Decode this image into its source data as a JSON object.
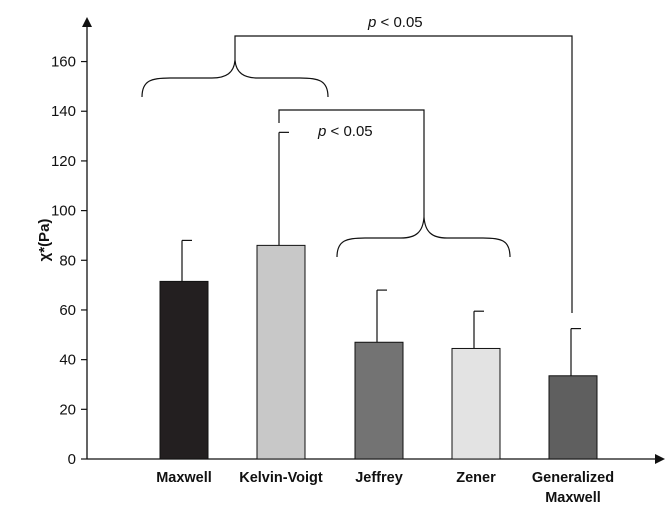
{
  "chart_data": {
    "type": "bar",
    "title": "",
    "xlabel": "",
    "ylabel": "χ*(Pa)",
    "ylim": [
      0,
      170
    ],
    "yticks": [
      0,
      20,
      40,
      60,
      80,
      100,
      120,
      140,
      160
    ],
    "grid": false,
    "categories": [
      {
        "line1": "Maxwell",
        "line2": ""
      },
      {
        "line1": "Kelvin-Voigt",
        "line2": ""
      },
      {
        "line1": "Jeffrey",
        "line2": ""
      },
      {
        "line1": "Zener",
        "line2": ""
      },
      {
        "line1": "Generalized",
        "line2": "Maxwell"
      }
    ],
    "values": [
      71.5,
      86,
      47,
      44.5,
      33.5
    ],
    "error_upper": [
      88,
      131.5,
      68,
      59.5,
      52.5
    ],
    "colors": [
      "#231f20",
      "#c8c8c8",
      "#737373",
      "#e3e3e3",
      "#5f5f5f"
    ],
    "annotations": [
      {
        "text_italic": "p",
        "text_rest": " < 0.05",
        "compares": "Maxwell & Kelvin-Voigt vs Generalized Maxwell"
      },
      {
        "text_italic": "p",
        "text_rest": " < 0.05",
        "compares": "Kelvin-Voigt vs Jeffrey & Zener"
      }
    ]
  }
}
